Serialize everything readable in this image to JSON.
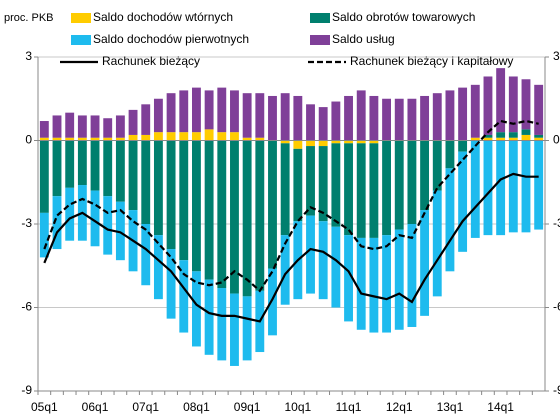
{
  "chart_data": {
    "type": "bar",
    "y_label": "proc. PKB",
    "categories": [
      "05q1",
      null,
      null,
      null,
      "06q1",
      null,
      null,
      null,
      "07q1",
      null,
      null,
      null,
      "08q1",
      null,
      null,
      null,
      "09q1",
      null,
      null,
      null,
      "10q1",
      null,
      null,
      null,
      "11q1",
      null,
      null,
      null,
      "12q1",
      null,
      null,
      null,
      "13q1",
      null,
      null,
      null,
      "14q1",
      null,
      null,
      null
    ],
    "series": [
      {
        "name": "Saldo dochodów wtórnych",
        "type": "bar",
        "color": "#ffcc00",
        "values": [
          0.1,
          0.1,
          0.1,
          0.1,
          0.1,
          0.1,
          0.1,
          0.2,
          0.2,
          0.3,
          0.3,
          0.3,
          0.3,
          0.4,
          0.3,
          0.3,
          0.1,
          0.1,
          0.0,
          -0.1,
          -0.3,
          -0.2,
          -0.2,
          -0.1,
          -0.1,
          -0.1,
          -0.1,
          0.0,
          0.0,
          0.0,
          0.0,
          0.0,
          0.0,
          0.0,
          0.1,
          0.1,
          0.1,
          0.1,
          0.2,
          0.1
        ]
      },
      {
        "name": "Saldo obrotów towarowych",
        "type": "bar",
        "color": "#007f6e",
        "values": [
          -2.6,
          -2.0,
          -1.7,
          -1.6,
          -1.8,
          -2.0,
          -2.2,
          -2.5,
          -3.0,
          -3.4,
          -3.9,
          -4.3,
          -4.7,
          -5.0,
          -5.3,
          -5.5,
          -5.6,
          -5.4,
          -4.6,
          -3.3,
          -2.6,
          -2.5,
          -2.7,
          -3.0,
          -3.3,
          -3.4,
          -3.4,
          -3.4,
          -3.2,
          -3.0,
          -2.5,
          -1.8,
          -1.0,
          -0.4,
          0.0,
          0.1,
          0.2,
          0.2,
          0.2,
          0.1
        ]
      },
      {
        "name": "Saldo dochodów pierwotnych",
        "type": "bar",
        "color": "#1ebbee",
        "values": [
          -1.6,
          -1.9,
          -1.9,
          -2.0,
          -2.0,
          -2.1,
          -2.1,
          -2.2,
          -2.2,
          -2.3,
          -2.5,
          -2.6,
          -2.7,
          -2.7,
          -2.6,
          -2.6,
          -2.3,
          -2.2,
          -2.4,
          -2.5,
          -2.8,
          -2.8,
          -2.8,
          -2.9,
          -3.1,
          -3.3,
          -3.4,
          -3.5,
          -3.6,
          -3.7,
          -3.8,
          -3.8,
          -3.7,
          -3.6,
          -3.5,
          -3.4,
          -3.4,
          -3.3,
          -3.3,
          -3.2
        ]
      },
      {
        "name": "Saldo usług",
        "type": "bar",
        "color": "#7f3f98",
        "values": [
          0.6,
          0.8,
          0.9,
          0.8,
          0.8,
          0.7,
          0.8,
          0.9,
          1.1,
          1.2,
          1.4,
          1.5,
          1.6,
          1.4,
          1.6,
          1.5,
          1.6,
          1.6,
          1.6,
          1.7,
          1.6,
          1.3,
          1.2,
          1.4,
          1.6,
          1.8,
          1.6,
          1.5,
          1.5,
          1.5,
          1.6,
          1.7,
          1.8,
          1.9,
          1.9,
          2.1,
          2.3,
          2.0,
          1.8,
          1.8
        ]
      },
      {
        "name": "Rachunek bieżący",
        "type": "line",
        "color": "#000000",
        "dashed": false,
        "values": [
          -4.4,
          -3.3,
          -2.8,
          -2.6,
          -2.9,
          -3.2,
          -3.3,
          -3.6,
          -3.9,
          -4.3,
          -4.7,
          -5.3,
          -5.9,
          -6.2,
          -6.3,
          -6.3,
          -6.4,
          -6.5,
          -5.7,
          -4.8,
          -4.3,
          -3.9,
          -4.0,
          -4.3,
          -4.7,
          -5.5,
          -5.6,
          -5.7,
          -5.5,
          -5.8,
          -5.0,
          -4.3,
          -3.6,
          -2.9,
          -2.4,
          -1.9,
          -1.4,
          -1.2,
          -1.3,
          -1.3
        ]
      },
      {
        "name": "Rachunek bieżący i kapitałowy",
        "type": "line",
        "color": "#000000",
        "dashed": true,
        "values": [
          -3.9,
          -2.7,
          -2.3,
          -2.1,
          -2.3,
          -2.6,
          -2.5,
          -2.9,
          -3.2,
          -3.7,
          -4.2,
          -4.8,
          -5.1,
          -5.2,
          -5.1,
          -4.7,
          -5.0,
          -5.4,
          -4.7,
          -3.7,
          -2.9,
          -2.4,
          -2.6,
          -2.9,
          -3.2,
          -3.8,
          -3.9,
          -3.8,
          -3.4,
          -3.5,
          -2.6,
          -1.7,
          -1.2,
          -0.7,
          -0.2,
          0.3,
          0.7,
          0.6,
          0.7,
          0.6
        ]
      }
    ],
    "ylim": [
      -9,
      3
    ],
    "yticks": [
      -9,
      -6,
      -3,
      0,
      3
    ],
    "grid": true
  }
}
